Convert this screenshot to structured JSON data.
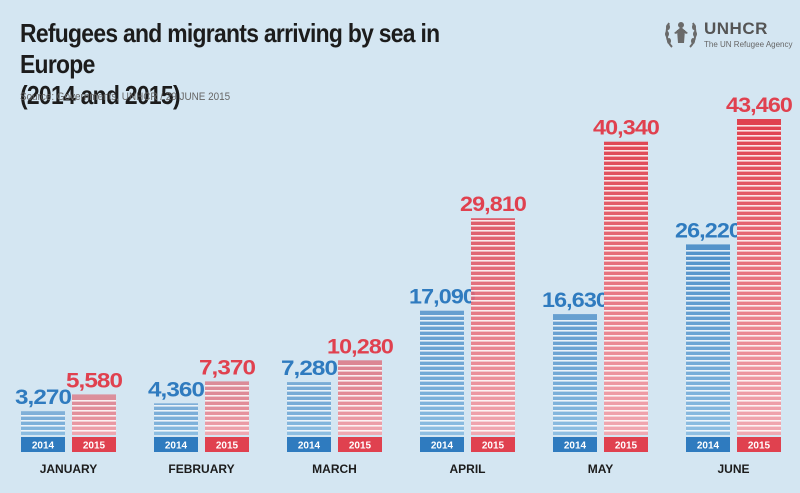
{
  "header": {
    "title_line1": "Refugees and migrants arriving by sea in Europe",
    "title_line2": "(2014 and 2015)",
    "source": "Source: Governments, UNHCR / 29 JUNE 2015"
  },
  "logo": {
    "name": "UNHCR",
    "tagline": "The UN Refugee Agency",
    "icon": "unhcr-emblem-icon"
  },
  "colors": {
    "background": "#d4e6f2",
    "series_2014": "#2f7bbf",
    "series_2014_light": "#8fbfe2",
    "series_2015": "#e0414f",
    "series_2015_light": "#f0a9b2",
    "stripe": "#ffffff"
  },
  "chart_data": {
    "type": "bar",
    "categories": [
      "JANUARY",
      "FEBRUARY",
      "MARCH",
      "APRIL",
      "MAY",
      "JUNE"
    ],
    "series": [
      {
        "name": "2014",
        "values": [
          3270,
          4360,
          7280,
          17090,
          16630,
          26220
        ]
      },
      {
        "name": "2015",
        "values": [
          5580,
          7370,
          10280,
          29810,
          40340,
          43460
        ]
      }
    ],
    "value_labels": {
      "2014": [
        "3,270",
        "4,360",
        "7,280",
        "17,090",
        "16,630",
        "26,220"
      ],
      "2015": [
        "5,580",
        "7,370",
        "10,280",
        "29,810",
        "40,340",
        "43,460"
      ]
    },
    "title": "Refugees and migrants arriving by sea in Europe (2014 and 2015)",
    "xlabel": "",
    "ylabel": "",
    "ylim": [
      0,
      43460
    ],
    "grid": false,
    "legend": "none"
  }
}
